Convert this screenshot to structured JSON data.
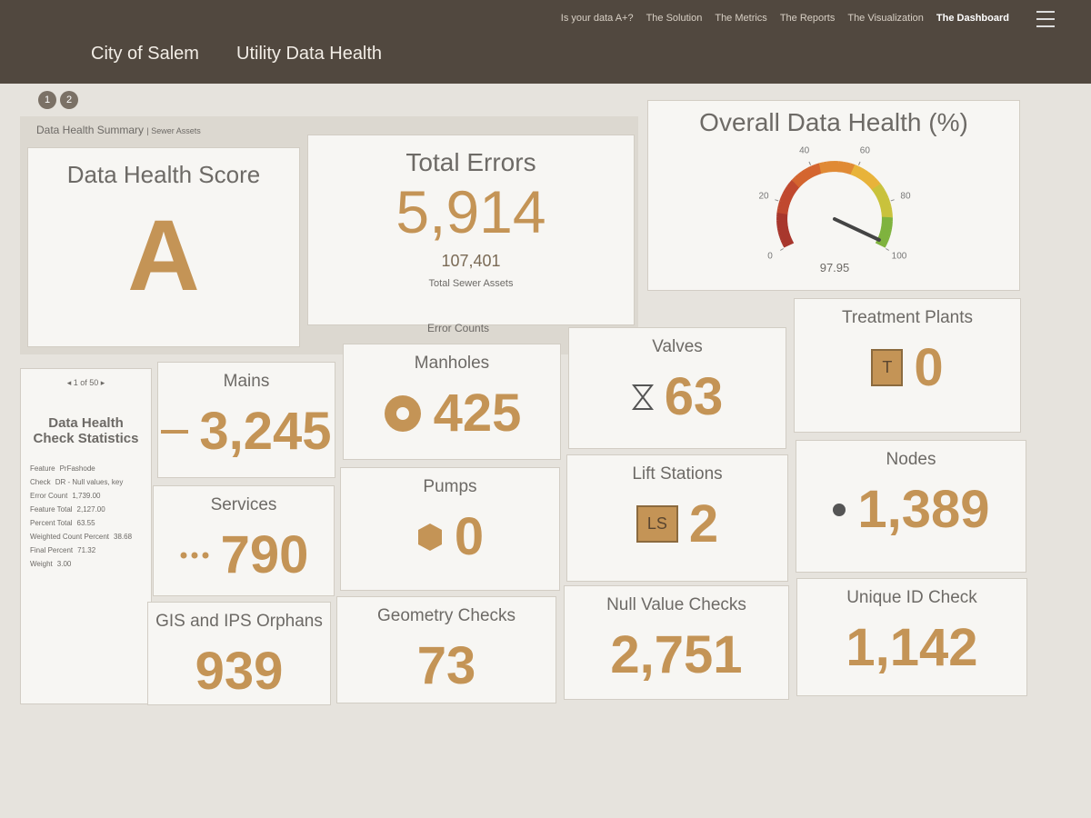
{
  "header": {
    "org": "City of Salem",
    "app": "Utility Data Health",
    "nav": [
      "Is your data A+?",
      "The Solution",
      "The Metrics",
      "The Reports",
      "The Visualization",
      "The Dashboard"
    ],
    "pages": [
      "1",
      "2"
    ]
  },
  "summary": {
    "label": "Data Health Summary",
    "sublabel": "| Sewer Assets",
    "score": {
      "title": "Data Health Score",
      "value": "A"
    },
    "errors": {
      "title": "Total Errors",
      "value": "5,914",
      "assets": "107,401",
      "assets_label": "Total Sewer Assets"
    }
  },
  "gauge": {
    "title": "Overall Data Health (%)",
    "value": 97.95,
    "range": [
      0,
      100
    ],
    "ticks": [
      0,
      20,
      40,
      60,
      80,
      100
    ]
  },
  "error_counts": {
    "title": "Error Counts",
    "cards": [
      {
        "title": "Mains",
        "value": "3,245"
      },
      {
        "title": "Manholes",
        "value": "425"
      },
      {
        "title": "Valves",
        "value": "63"
      },
      {
        "title": "Treatment Plants",
        "value": "0",
        "icon_label": "T"
      },
      {
        "title": "Services",
        "value": "790"
      },
      {
        "title": "Pumps",
        "value": "0"
      },
      {
        "title": "Lift Stations",
        "value": "2",
        "icon_label": "LS"
      },
      {
        "title": "Nodes",
        "value": "1,389"
      },
      {
        "title": "GIS and IPS Orphans",
        "value": "939"
      },
      {
        "title": "Geometry Checks",
        "value": "73"
      },
      {
        "title": "Null Value Checks",
        "value": "2,751"
      },
      {
        "title": "Unique ID Check",
        "value": "1,142"
      }
    ]
  },
  "stats": {
    "pager": "1 of 50",
    "title": "Data Health Check Statistics",
    "rows": [
      [
        "Feature",
        "PrFashode"
      ],
      [
        "Check",
        "DR - Null values, key"
      ],
      [
        "Error Count",
        "1,739.00"
      ],
      [
        "Feature Total",
        "2,127.00"
      ],
      [
        "Percent Total",
        "63.55"
      ],
      [
        "Weighted Count Percent",
        "38.68"
      ],
      [
        "Final Percent",
        "71.32"
      ],
      [
        "Weight",
        "3.00"
      ]
    ]
  }
}
